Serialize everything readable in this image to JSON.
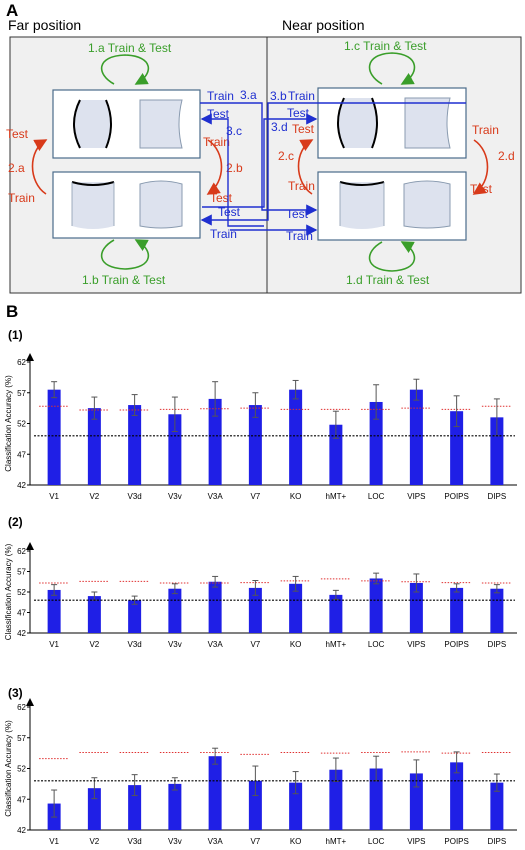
{
  "panel_a": {
    "letter": "A",
    "far_label": "Far position",
    "near_label": "Near position",
    "labels": {
      "t1a": "1.a Train & Test",
      "t1b": "1.b Train & Test",
      "t1c": "1.c Train & Test",
      "t1d": "1.d Train & Test",
      "l2a": "2.a",
      "l2b": "2.b",
      "l2c": "2.c",
      "l2d": "2.d",
      "l3a": "3.a",
      "l3b": "3.b",
      "l3c": "3.c",
      "l3d": "3.d",
      "train": "Train",
      "test": "Test"
    },
    "colors": {
      "green": "#3a9e2a",
      "red": "#d83a1a",
      "blue": "#1f2fd0",
      "panel_bg": "#f0f0f0"
    }
  },
  "panel_b": {
    "letter": "B",
    "chart_labels": [
      "(1)",
      "(2)",
      "(3)"
    ],
    "ylabel": "Classification Accuracy (%)",
    "colors": {
      "bar": "#1f1fe6",
      "error": "#555555",
      "chance": "#000000",
      "threshold": "#e03030"
    }
  },
  "chart_data": [
    {
      "type": "bar",
      "label": "(1)",
      "categories": [
        "V1",
        "V2",
        "V3d",
        "V3v",
        "V3A",
        "V7",
        "KO",
        "hMT+",
        "LOC",
        "VIPS",
        "POIPS",
        "DIPS"
      ],
      "values": [
        57.5,
        54.5,
        55.0,
        53.5,
        56.0,
        55.0,
        57.5,
        51.8,
        55.5,
        57.5,
        54.0,
        53.0
      ],
      "errors": [
        1.3,
        1.8,
        1.7,
        2.8,
        2.8,
        2.0,
        1.5,
        2.2,
        2.8,
        1.7,
        2.5,
        3.0
      ],
      "chance": 50,
      "threshold": [
        54.8,
        54.2,
        54.2,
        54.3,
        54.4,
        54.5,
        54.3,
        54.3,
        54.3,
        54.5,
        54.3,
        54.8
      ],
      "ylabel": "Classification Accuracy (%)",
      "yticks": [
        42,
        47,
        52,
        57,
        62
      ],
      "ylim": [
        42,
        62
      ]
    },
    {
      "type": "bar",
      "label": "(2)",
      "categories": [
        "V1",
        "V2",
        "V3d",
        "V3v",
        "V3A",
        "V7",
        "KO",
        "hMT+",
        "LOC",
        "VIPS",
        "POIPS",
        "DIPS"
      ],
      "values": [
        52.5,
        51.0,
        50.0,
        52.8,
        54.5,
        53.0,
        54.0,
        51.3,
        55.3,
        54.2,
        53.0,
        52.8
      ],
      "errors": [
        1.3,
        1.0,
        1.0,
        1.2,
        1.3,
        1.8,
        1.8,
        1.1,
        1.3,
        2.2,
        1.0,
        1.0
      ],
      "chance": 50,
      "threshold": [
        54.2,
        54.6,
        54.6,
        54.2,
        54.2,
        54.3,
        54.7,
        55.2,
        54.7,
        54.5,
        54.3,
        54.2
      ],
      "ylabel": "Classification Accuracy (%)",
      "yticks": [
        42,
        47,
        52,
        57,
        62
      ],
      "ylim": [
        42,
        62
      ]
    },
    {
      "type": "bar",
      "label": "(3)",
      "categories": [
        "V1",
        "V2",
        "V3d",
        "V3v",
        "V3A",
        "V7",
        "KO",
        "hMT+",
        "LOC",
        "VIPS",
        "POIPS",
        "DIPS"
      ],
      "values": [
        46.3,
        48.8,
        49.3,
        49.5,
        54.0,
        50.0,
        49.7,
        51.8,
        52.0,
        51.2,
        53.0,
        49.7
      ],
      "errors": [
        2.2,
        1.7,
        1.7,
        1.0,
        1.3,
        2.4,
        1.8,
        1.9,
        2.0,
        2.2,
        1.7,
        1.4
      ],
      "chance": 50,
      "threshold": [
        53.6,
        54.6,
        54.6,
        54.6,
        54.6,
        54.3,
        54.6,
        54.5,
        54.6,
        54.7,
        54.5,
        54.6
      ],
      "ylabel": "Classification Accuracy (%)",
      "yticks": [
        42,
        47,
        52,
        57,
        62
      ],
      "ylim": [
        42,
        62
      ]
    }
  ]
}
